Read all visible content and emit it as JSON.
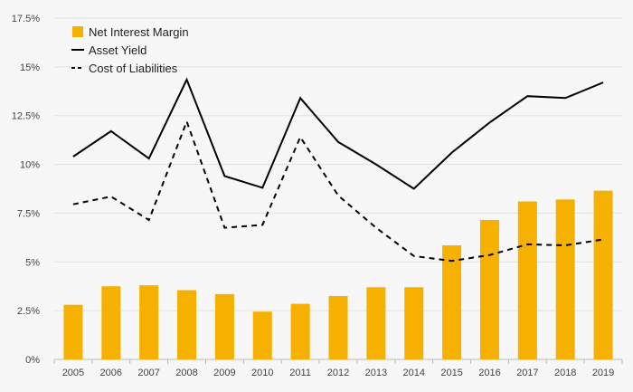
{
  "chart_data": {
    "type": "bar+line",
    "categories": [
      "2005",
      "2006",
      "2007",
      "2008",
      "2009",
      "2010",
      "2011",
      "2012",
      "2013",
      "2014",
      "2015",
      "2016",
      "2017",
      "2018",
      "2019"
    ],
    "series": [
      {
        "name": "Net Interest Margin",
        "type": "bar",
        "color": "#f5b000",
        "values": [
          2.8,
          3.75,
          3.8,
          3.55,
          3.35,
          2.45,
          2.85,
          3.25,
          3.7,
          3.7,
          5.85,
          7.15,
          8.1,
          8.2,
          8.65
        ]
      },
      {
        "name": "Asset Yield",
        "type": "line",
        "style": "solid",
        "color": "#000000",
        "values": [
          10.4,
          11.7,
          10.3,
          14.35,
          9.4,
          8.8,
          13.4,
          11.15,
          10.0,
          8.75,
          10.6,
          12.15,
          13.5,
          13.4,
          14.2
        ]
      },
      {
        "name": "Cost of Liabilities",
        "type": "line",
        "style": "dashed",
        "color": "#000000",
        "values": [
          7.95,
          8.35,
          7.15,
          12.2,
          6.75,
          6.9,
          11.4,
          8.4,
          6.75,
          5.3,
          5.05,
          5.35,
          5.9,
          5.85,
          6.15
        ]
      }
    ],
    "y_ticks": [
      "0%",
      "2.5%",
      "5%",
      "7.5%",
      "10%",
      "12.5%",
      "15%",
      "17.5%"
    ],
    "ylim": [
      0,
      17.5
    ],
    "grid": true,
    "legend": "top-left",
    "title": "",
    "xlabel": "",
    "ylabel": ""
  }
}
